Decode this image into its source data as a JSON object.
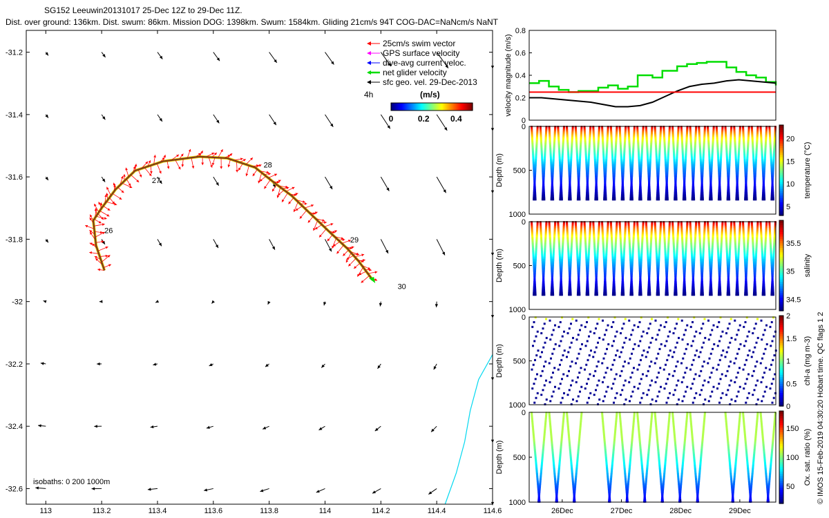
{
  "header": {
    "line1": "SG152 Leeuwin20131017 25-Dec 12Z to 29-Dec 11Z.",
    "line2": "Dist. over ground: 136km. Dist. swum: 86km. Mission DOG: 1398km. Swum: 1584km. Gliding 21cm/s 94T COG-DAC=NaNcm/s NaNT"
  },
  "side_note": "© IMOS 15-Feb-2019 04:30:20 Hobart time. QC flags 1  2",
  "colors": {
    "swim": "#ff0000",
    "gps": "#ff00ff",
    "dac": "#0000ff",
    "net": "#00dd00",
    "sfc": "#000000",
    "track": "#7a3b1b",
    "isobath": "#00d8f0",
    "speed_ref": "#ff0000"
  },
  "chart_data": [
    {
      "type": "scatter",
      "title": "",
      "xlabel": "",
      "ylabel": "",
      "xlim": [
        112.93,
        114.6
      ],
      "ylim": [
        -32.65,
        -31.13
      ],
      "x_ticks": [
        "113",
        "113.2",
        "113.4",
        "113.6",
        "113.8",
        "114",
        "114.2",
        "114.4",
        "114.6"
      ],
      "y_ticks": [
        "-31.2",
        "-31.4",
        "-31.6",
        "-31.8",
        "-32",
        "-32.2",
        "-32.4",
        "-32.6"
      ],
      "legend": [
        {
          "label": "25cm/s swim vector",
          "color_key": "swim"
        },
        {
          "label": "GPS surface velocity",
          "color_key": "gps"
        },
        {
          "label": "dive-avg current veloc.",
          "color_key": "dac"
        },
        {
          "label": "net glider velocity",
          "color_key": "net"
        },
        {
          "label": "sfc geo. vel. 29-Dec-2013",
          "color_key": "sfc"
        }
      ],
      "legend_position": "top-right",
      "colorbar": {
        "title": "(m/s)",
        "ticks": [
          "0",
          "0.2",
          "0.4"
        ],
        "range": [
          0,
          0.5
        ],
        "label_4h": "4h"
      },
      "track": [
        [
          113.21,
          -31.9
        ],
        [
          113.18,
          -31.82
        ],
        [
          113.17,
          -31.74
        ],
        [
          113.2,
          -31.7
        ],
        [
          113.25,
          -31.64
        ],
        [
          113.32,
          -31.58
        ],
        [
          113.42,
          -31.55
        ],
        [
          113.55,
          -31.535
        ],
        [
          113.65,
          -31.54
        ],
        [
          113.75,
          -31.57
        ],
        [
          113.82,
          -31.62
        ],
        [
          113.88,
          -31.66
        ],
        [
          113.95,
          -31.72
        ],
        [
          114.02,
          -31.78
        ],
        [
          114.08,
          -31.83
        ],
        [
          114.12,
          -31.87
        ],
        [
          114.17,
          -31.93
        ]
      ],
      "day_labels": [
        {
          "text": "26",
          "x": 113.21,
          "y": -31.78
        },
        {
          "text": "27",
          "x": 113.38,
          "y": -31.62
        },
        {
          "text": "28",
          "x": 113.78,
          "y": -31.57
        },
        {
          "text": "29",
          "x": 114.09,
          "y": -31.81
        },
        {
          "text": "30",
          "x": 114.26,
          "y": -31.96
        }
      ],
      "isobaths_text": "isobaths: 0   200  1000m",
      "isobath_1000": [
        [
          114.6,
          -32.17
        ],
        [
          114.55,
          -32.25
        ],
        [
          114.52,
          -32.35
        ],
        [
          114.5,
          -32.45
        ],
        [
          114.47,
          -32.55
        ],
        [
          114.43,
          -32.65
        ]
      ]
    },
    {
      "type": "line",
      "title": "",
      "xlabel": "",
      "ylabel": "velocity magnitude (m/s)",
      "ylim": [
        0,
        0.8
      ],
      "yticks": [
        "0",
        "0.2",
        "0.4",
        "0.6",
        "0.8"
      ],
      "series": [
        {
          "color_key": "net",
          "x": [
            0,
            0.04,
            0.08,
            0.12,
            0.16,
            0.2,
            0.24,
            0.28,
            0.32,
            0.36,
            0.4,
            0.44,
            0.5,
            0.54,
            0.6,
            0.64,
            0.68,
            0.72,
            0.76,
            0.8,
            0.84,
            0.88,
            0.92,
            0.96,
            1.0
          ],
          "values": [
            0.33,
            0.35,
            0.3,
            0.27,
            0.25,
            0.26,
            0.26,
            0.29,
            0.31,
            0.28,
            0.3,
            0.4,
            0.38,
            0.44,
            0.48,
            0.5,
            0.51,
            0.52,
            0.52,
            0.47,
            0.43,
            0.4,
            0.38,
            0.34,
            0.31
          ]
        },
        {
          "color_key": "sfc",
          "x": [
            0,
            0.05,
            0.1,
            0.15,
            0.2,
            0.25,
            0.3,
            0.35,
            0.4,
            0.45,
            0.5,
            0.55,
            0.6,
            0.65,
            0.7,
            0.75,
            0.8,
            0.85,
            0.9,
            0.95,
            1.0
          ],
          "values": [
            0.2,
            0.2,
            0.19,
            0.18,
            0.17,
            0.16,
            0.14,
            0.12,
            0.12,
            0.13,
            0.16,
            0.21,
            0.26,
            0.3,
            0.32,
            0.33,
            0.35,
            0.36,
            0.35,
            0.34,
            0.33
          ]
        },
        {
          "color_key": "speed_ref",
          "x": [
            0,
            1
          ],
          "values": [
            0.25,
            0.25
          ]
        }
      ]
    },
    {
      "type": "scatter",
      "ylabel": "Depth (m)",
      "clabel": "temperature (°C)",
      "ylim": [
        1000,
        0
      ],
      "yticks": [
        "0",
        "500",
        "1000"
      ],
      "cticks": [
        "5",
        "10",
        "15",
        "20"
      ],
      "crange": [
        3,
        23
      ],
      "profile_depth": 850,
      "n_dives": 28
    },
    {
      "type": "scatter",
      "ylabel": "Depth (m)",
      "clabel": "salinity",
      "ylim": [
        1000,
        0
      ],
      "yticks": [
        "0",
        "500",
        "1000"
      ],
      "cticks": [
        "34.5",
        "35",
        "35.5"
      ],
      "crange": [
        34.3,
        35.9
      ],
      "profile_depth": 850,
      "n_dives": 28
    },
    {
      "type": "scatter",
      "ylabel": "Depth (m)",
      "clabel": "chl-a (mg m-3)",
      "ylim": [
        1000,
        0
      ],
      "yticks": [
        "0",
        "500",
        "1000"
      ],
      "cticks": [
        "0",
        "0.5",
        "1",
        "1.5",
        "2"
      ],
      "crange": [
        0,
        2
      ],
      "profile_depth": 1000,
      "n_dives": 28
    },
    {
      "type": "scatter",
      "ylabel": "Depth (m)",
      "clabel": "Ox. sat. ratio (%)",
      "ylim": [
        1000,
        0
      ],
      "yticks": [
        "0",
        "500",
        "1000"
      ],
      "cticks": [
        "50",
        "100",
        "150"
      ],
      "crange": [
        20,
        180
      ],
      "profile_depth": 1000,
      "n_dives": 14,
      "xticks": [
        "26Dec",
        "27Dec",
        "28Dec",
        "29Dec"
      ]
    }
  ]
}
